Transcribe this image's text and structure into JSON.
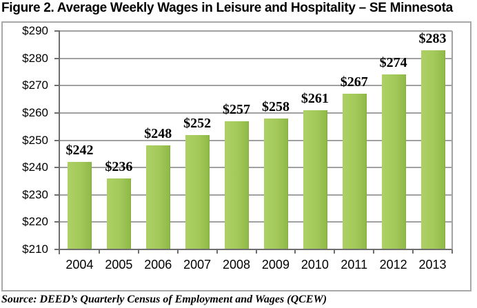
{
  "title": "Figure 2. Average Weekly Wages in Leisure and Hospitality – SE Minnesota",
  "source": "Source: DEED’s Quarterly Census of Employment and Wages (QCEW)",
  "colors": {
    "bar_green_light": "#aed065",
    "bar_green": "#a3c95a",
    "bar_green_dark": "#90ba48",
    "gridline": "#a1a1a1",
    "axis": "#6e6e6e",
    "frame_border": "#a8a8a8",
    "background": "#ffffff",
    "text": "#000000"
  },
  "chart_data": {
    "type": "bar",
    "title": "Figure 2. Average Weekly Wages in Leisure and Hospitality – SE Minnesota",
    "categories": [
      "2004",
      "2005",
      "2006",
      "2007",
      "2008",
      "2009",
      "2010",
      "2011",
      "2012",
      "2013"
    ],
    "values": [
      242,
      236,
      248,
      252,
      257,
      258,
      261,
      267,
      274,
      283
    ],
    "data_labels": [
      "$242",
      "$236",
      "$248",
      "$252",
      "$257",
      "$258",
      "$261",
      "$267",
      "$274",
      "$283"
    ],
    "y_ticks": [
      "$290",
      "$280",
      "$270",
      "$260",
      "$250",
      "$240",
      "$230",
      "$220",
      "$210"
    ],
    "xlabel": "",
    "ylabel": "",
    "ylim": [
      210,
      290
    ],
    "ytick_step": 10,
    "grid": true,
    "legend": "none",
    "source": "Source: DEED’s Quarterly Census of Employment and Wages (QCEW)"
  }
}
